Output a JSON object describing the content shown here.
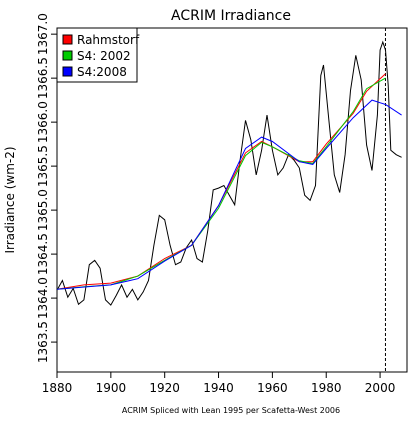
{
  "chart_data": {
    "type": "line",
    "title": "ACRIM Irradiance",
    "ylabel": "Irradiance (wm-2)",
    "caption": "ACRIM Spliced with Lean 1995 per Scafetta-West 2006",
    "xlim": [
      1880,
      2010
    ],
    "ylim": [
      1363.16,
      1367.07
    ],
    "xticks": [
      1880,
      1900,
      1920,
      1940,
      1960,
      1980,
      2000
    ],
    "yticks": [
      {
        "value": 1363.5,
        "label": "1363.5"
      },
      {
        "value": 1364,
        "label": "1364.0"
      },
      {
        "value": 1364.5,
        "label": "1364.5"
      },
      {
        "value": 1365,
        "label": "1365.0"
      },
      {
        "value": 1365.5,
        "label": "1365.5"
      },
      {
        "value": 1366,
        "label": "1366.0"
      },
      {
        "value": 1366.5,
        "label": "1366.5"
      },
      {
        "value": 1367,
        "label": "1367.0"
      }
    ],
    "vline": 2002,
    "legend": "top-left",
    "raw": {
      "color": "#000000",
      "x": [
        1880,
        1882,
        1884,
        1886,
        1888,
        1890,
        1892,
        1894,
        1896,
        1898,
        1900,
        1902,
        1904,
        1906,
        1908,
        1910,
        1912,
        1914,
        1916,
        1918,
        1920,
        1922,
        1924,
        1926,
        1928,
        1930,
        1932,
        1934,
        1936,
        1938,
        1940,
        1942,
        1944,
        1946,
        1948,
        1950,
        1952,
        1954,
        1956,
        1958,
        1960,
        1962,
        1964,
        1966,
        1968,
        1970,
        1972,
        1974,
        1976,
        1978,
        1979,
        1981,
        1983,
        1985,
        1987,
        1989,
        1991,
        1993,
        1995,
        1997,
        1999,
        2000,
        2001,
        2002,
        2003,
        2004,
        2006,
        2008
      ],
      "values": [
        1364.09,
        1364.2,
        1364.01,
        1364.11,
        1363.93,
        1363.98,
        1364.38,
        1364.43,
        1364.34,
        1363.98,
        1363.92,
        1364.03,
        1364.15,
        1364.01,
        1364.1,
        1363.98,
        1364.07,
        1364.2,
        1364.6,
        1364.94,
        1364.89,
        1364.6,
        1364.38,
        1364.41,
        1364.57,
        1364.66,
        1364.45,
        1364.41,
        1364.77,
        1365.23,
        1365.25,
        1365.28,
        1365.17,
        1365.06,
        1365.57,
        1366.02,
        1365.8,
        1365.4,
        1365.68,
        1366.08,
        1365.68,
        1365.4,
        1365.48,
        1365.63,
        1365.57,
        1365.48,
        1365.17,
        1365.11,
        1365.28,
        1366.53,
        1366.65,
        1366.02,
        1365.4,
        1365.2,
        1365.63,
        1366.36,
        1366.76,
        1366.48,
        1365.74,
        1365.45,
        1366.08,
        1366.82,
        1366.91,
        1366.82,
        1366.42,
        1365.68,
        1365.63,
        1365.6
      ]
    },
    "series": [
      {
        "name": "Rahmstorf",
        "color": "#ff0000",
        "x": [
          1880,
          1890,
          1900,
          1910,
          1920,
          1930,
          1940,
          1950,
          1956,
          1960,
          1970,
          1975,
          1980,
          1990,
          1995,
          2002
        ],
        "values": [
          1364.1,
          1364.15,
          1364.17,
          1364.25,
          1364.45,
          1364.6,
          1365.05,
          1365.65,
          1365.78,
          1365.72,
          1365.55,
          1365.55,
          1365.75,
          1366.1,
          1366.35,
          1366.55
        ]
      },
      {
        "name": "S4: 2002",
        "color": "#00cc00",
        "x": [
          1880,
          1890,
          1900,
          1910,
          1920,
          1930,
          1940,
          1950,
          1956,
          1960,
          1970,
          1975,
          1980,
          1990,
          1995,
          2002
        ],
        "values": [
          1364.1,
          1364.13,
          1364.15,
          1364.25,
          1364.43,
          1364.6,
          1365.02,
          1365.62,
          1365.77,
          1365.72,
          1365.56,
          1365.53,
          1365.72,
          1366.12,
          1366.38,
          1366.5
        ]
      },
      {
        "name": "S4:2008",
        "color": "#0000ff",
        "x": [
          1880,
          1900,
          1910,
          1920,
          1930,
          1940,
          1950,
          1956,
          1960,
          1970,
          1975,
          1980,
          1990,
          1997,
          2002,
          2008
        ],
        "values": [
          1364.1,
          1364.15,
          1364.22,
          1364.42,
          1364.6,
          1365.05,
          1365.7,
          1365.83,
          1365.78,
          1365.55,
          1365.52,
          1365.7,
          1366.05,
          1366.25,
          1366.2,
          1366.08
        ]
      }
    ]
  }
}
